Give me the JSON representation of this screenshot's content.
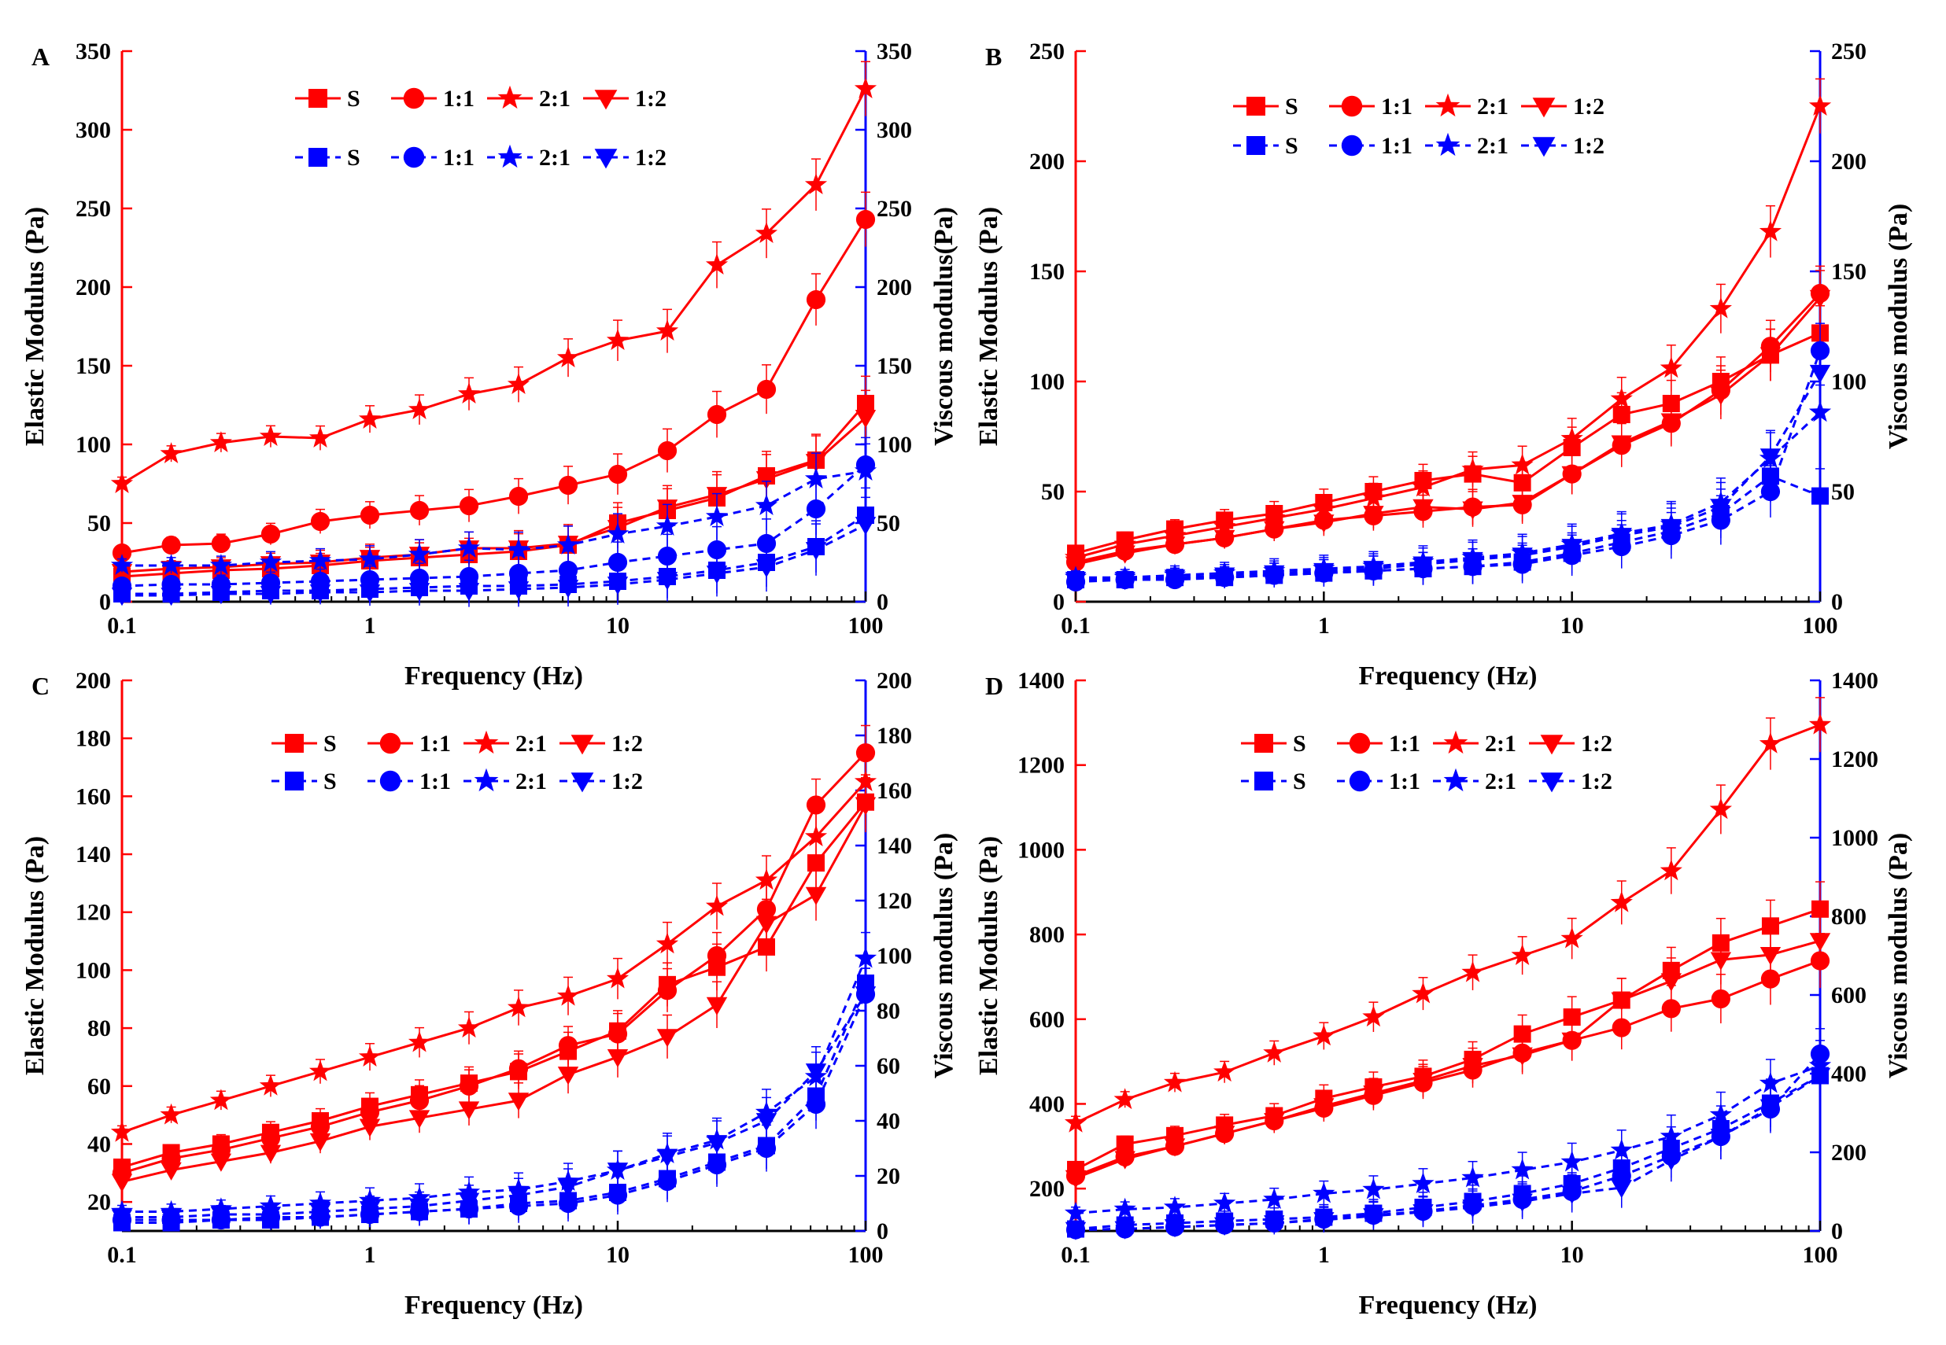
{
  "colors": {
    "elastic": "#ff0000",
    "viscous": "#0000ff",
    "axis": "#000000"
  },
  "chart_data": [
    {
      "type": "line",
      "panel_label": "A",
      "xlabel": "Frequency (Hz)",
      "ylabel": "Elastic Modulus (Pa)",
      "y2label": "Viscous modulus(Pa)",
      "xscale": "log",
      "xlim": [
        0.1,
        100
      ],
      "ylim": [
        0,
        350
      ],
      "y2lim": [
        0,
        350
      ],
      "xticks": [
        "0.1",
        "1",
        "10",
        "100"
      ],
      "yticks": [
        "0",
        "50",
        "100",
        "150",
        "200",
        "250",
        "300",
        "350"
      ],
      "y2ticks": [
        "0",
        "50",
        "100",
        "150",
        "200",
        "250",
        "300",
        "350"
      ],
      "x": [
        0.1,
        0.158,
        0.251,
        0.398,
        0.631,
        1,
        1.585,
        2.512,
        3.981,
        6.31,
        10,
        15.85,
        25.12,
        39.81,
        63.1,
        100
      ],
      "legend_rows": "separate",
      "series": [
        {
          "name": "S",
          "group": "elastic",
          "marker": "square",
          "values": [
            16,
            18,
            20,
            21,
            23,
            26,
            28,
            30,
            32,
            36,
            50,
            58,
            66,
            80,
            90,
            126
          ]
        },
        {
          "name": "1:1",
          "group": "elastic",
          "marker": "circle",
          "values": [
            31,
            36,
            37,
            43,
            51,
            55,
            58,
            61,
            67,
            74,
            81,
            96,
            119,
            135,
            192,
            243
          ]
        },
        {
          "name": "2:1",
          "group": "elastic",
          "marker": "star",
          "values": [
            75,
            94,
            101,
            105,
            104,
            116,
            122,
            132,
            138,
            155,
            166,
            172,
            214,
            234,
            265,
            326
          ]
        },
        {
          "name": "1:2",
          "group": "elastic",
          "marker": "triangle",
          "values": [
            19,
            21,
            22,
            24,
            25,
            28,
            30,
            34,
            34,
            37,
            47,
            60,
            68,
            78,
            89,
            117
          ]
        },
        {
          "name": "S",
          "group": "viscous",
          "marker": "square",
          "values": [
            5,
            5,
            6,
            7,
            7,
            8,
            9,
            10,
            10,
            11,
            13,
            16,
            20,
            25,
            35,
            55
          ]
        },
        {
          "name": "1:1",
          "group": "viscous",
          "marker": "circle",
          "values": [
            10,
            11,
            11,
            12,
            13,
            14,
            15,
            16,
            18,
            20,
            25,
            29,
            33,
            37,
            59,
            87
          ]
        },
        {
          "name": "2:1",
          "group": "viscous",
          "marker": "star",
          "values": [
            23,
            23,
            23,
            25,
            26,
            27,
            30,
            34,
            33,
            36,
            43,
            48,
            54,
            61,
            78,
            83
          ]
        },
        {
          "name": "1:2",
          "group": "viscous",
          "marker": "triangle",
          "values": [
            4,
            4,
            5,
            5,
            6,
            6,
            7,
            7,
            8,
            9,
            11,
            14,
            18,
            22,
            33,
            49
          ]
        }
      ]
    },
    {
      "type": "line",
      "panel_label": "B",
      "xlabel": "Frequency (Hz)",
      "ylabel": "Elastic Modulus (Pa)",
      "y2label": "Viscous modulus (Pa)",
      "xscale": "log",
      "xlim": [
        0.1,
        100
      ],
      "ylim": [
        0,
        250
      ],
      "y2lim": [
        0,
        250
      ],
      "xticks": [
        "0.1",
        "1",
        "10",
        "100"
      ],
      "yticks": [
        "0",
        "50",
        "100",
        "150",
        "200",
        "250"
      ],
      "y2ticks": [
        "0",
        "50",
        "100",
        "150",
        "200",
        "250"
      ],
      "x": [
        0.1,
        0.158,
        0.251,
        0.398,
        0.631,
        1,
        1.585,
        2.512,
        3.981,
        6.31,
        10,
        15.85,
        25.12,
        39.81,
        63.1,
        100
      ],
      "legend_rows": "stacked",
      "series": [
        {
          "name": "S",
          "group": "elastic",
          "marker": "square",
          "values": [
            22,
            28,
            33,
            37,
            40,
            45,
            50,
            55,
            58,
            54,
            70,
            85,
            90,
            100,
            112,
            122
          ]
        },
        {
          "name": "1:1",
          "group": "elastic",
          "marker": "circle",
          "values": [
            18,
            23,
            26,
            29,
            33,
            37,
            39,
            41,
            43,
            44,
            58,
            71,
            81,
            96,
            116,
            140
          ]
        },
        {
          "name": "2:1",
          "group": "elastic",
          "marker": "star",
          "values": [
            20,
            26,
            30,
            34,
            38,
            42,
            47,
            52,
            60,
            62,
            74,
            92,
            106,
            133,
            168,
            225
          ]
        },
        {
          "name": "1:2",
          "group": "elastic",
          "marker": "triangle",
          "values": [
            17,
            22,
            26,
            29,
            33,
            36,
            40,
            43,
            42,
            45,
            58,
            72,
            82,
            94,
            112,
            138
          ]
        },
        {
          "name": "S",
          "group": "viscous",
          "marker": "square",
          "values": [
            10,
            10,
            11,
            11,
            12,
            13,
            14,
            15,
            16,
            18,
            22,
            27,
            32,
            40,
            57,
            48
          ]
        },
        {
          "name": "1:1",
          "group": "viscous",
          "marker": "circle",
          "values": [
            9,
            10,
            10,
            11,
            12,
            13,
            14,
            15,
            16,
            17,
            21,
            25,
            30,
            37,
            50,
            114
          ]
        },
        {
          "name": "2:1",
          "group": "viscous",
          "marker": "star",
          "values": [
            11,
            11,
            12,
            13,
            14,
            15,
            16,
            18,
            20,
            22,
            26,
            31,
            35,
            45,
            65,
            86
          ]
        },
        {
          "name": "1:2",
          "group": "viscous",
          "marker": "triangle",
          "values": [
            10,
            10,
            11,
            12,
            13,
            14,
            15,
            17,
            19,
            21,
            25,
            30,
            34,
            43,
            66,
            104
          ]
        }
      ]
    },
    {
      "type": "line",
      "panel_label": "C",
      "xlabel": "Frequency (Hz)",
      "ylabel": "Elastic Modulus (Pa)",
      "y2label": "Viscous modulus (Pa)",
      "xscale": "log",
      "xlim": [
        0.1,
        100
      ],
      "ylim": [
        10,
        200
      ],
      "y2lim": [
        0,
        200
      ],
      "xticks": [
        "0.1",
        "1",
        "10",
        "100"
      ],
      "yticks": [
        "20",
        "40",
        "60",
        "80",
        "100",
        "120",
        "140",
        "160",
        "180",
        "200"
      ],
      "y2ticks": [
        "0",
        "20",
        "40",
        "60",
        "80",
        "100",
        "120",
        "140",
        "160",
        "180",
        "200"
      ],
      "x": [
        0.1,
        0.158,
        0.251,
        0.398,
        0.631,
        1,
        1.585,
        2.512,
        3.981,
        6.31,
        10,
        15.85,
        25.12,
        39.81,
        63.1,
        100
      ],
      "legend_rows": "stacked",
      "series": [
        {
          "name": "S",
          "group": "elastic",
          "marker": "square",
          "values": [
            32,
            37,
            40,
            44,
            48,
            53,
            57,
            61,
            65,
            72,
            79,
            95,
            101,
            108,
            137,
            158
          ]
        },
        {
          "name": "1:1",
          "group": "elastic",
          "marker": "circle",
          "values": [
            30,
            35,
            38,
            42,
            46,
            51,
            55,
            60,
            66,
            74,
            78,
            93,
            105,
            121,
            157,
            175
          ]
        },
        {
          "name": "2:1",
          "group": "elastic",
          "marker": "star",
          "values": [
            44,
            50,
            55,
            60,
            65,
            70,
            75,
            80,
            87,
            91,
            97,
            109,
            122,
            131,
            146,
            165
          ]
        },
        {
          "name": "1:2",
          "group": "elastic",
          "marker": "triangle",
          "values": [
            27,
            31,
            34,
            37,
            41,
            46,
            49,
            52,
            55,
            64,
            70,
            77,
            88,
            116,
            126,
            157
          ]
        },
        {
          "name": "S",
          "group": "viscous",
          "marker": "square",
          "values": [
            3,
            3,
            4,
            4,
            5,
            6,
            7,
            8,
            10,
            11,
            14,
            19,
            25,
            31,
            49,
            90
          ]
        },
        {
          "name": "1:1",
          "group": "viscous",
          "marker": "circle",
          "values": [
            4,
            4,
            4,
            5,
            5,
            6,
            7,
            8,
            9,
            10,
            13,
            18,
            24,
            30,
            46,
            86
          ]
        },
        {
          "name": "2:1",
          "group": "viscous",
          "marker": "star",
          "values": [
            7,
            7,
            8,
            9,
            10,
            11,
            12,
            14,
            15,
            18,
            22,
            28,
            33,
            43,
            56,
            99
          ]
        },
        {
          "name": "1:2",
          "group": "viscous",
          "marker": "triangle",
          "values": [
            5,
            5,
            6,
            6,
            7,
            8,
            9,
            11,
            13,
            16,
            22,
            27,
            32,
            40,
            58,
            86
          ]
        }
      ]
    },
    {
      "type": "line",
      "panel_label": "D",
      "xlabel": "Frequency (Hz)",
      "ylabel": "Elastic Modulus (Pa)",
      "y2label": "Viscous modulus (Pa)",
      "xscale": "log",
      "xlim": [
        0.1,
        100
      ],
      "ylim": [
        100,
        1400
      ],
      "y2lim": [
        0,
        1400
      ],
      "xticks": [
        "0.1",
        "1",
        "10",
        "100"
      ],
      "yticks": [
        "200",
        "400",
        "600",
        "800",
        "1000",
        "1200",
        "1400"
      ],
      "y2ticks": [
        "0",
        "200",
        "400",
        "600",
        "800",
        "1000",
        "1200",
        "1400"
      ],
      "x": [
        0.1,
        0.158,
        0.251,
        0.398,
        0.631,
        1,
        1.585,
        2.512,
        3.981,
        6.31,
        10,
        15.85,
        25.12,
        39.81,
        63.1,
        100
      ],
      "legend_rows": "stacked",
      "series": [
        {
          "name": "S",
          "group": "elastic",
          "marker": "square",
          "values": [
            245,
            305,
            325,
            350,
            372,
            413,
            440,
            465,
            505,
            565,
            605,
            645,
            715,
            780,
            820,
            860
          ]
        },
        {
          "name": "1:1",
          "group": "elastic",
          "marker": "circle",
          "values": [
            230,
            275,
            300,
            330,
            360,
            390,
            420,
            450,
            480,
            520,
            550,
            580,
            625,
            648,
            695,
            738
          ]
        },
        {
          "name": "2:1",
          "group": "elastic",
          "marker": "star",
          "values": [
            355,
            410,
            450,
            475,
            520,
            560,
            605,
            660,
            710,
            750,
            790,
            875,
            950,
            1095,
            1250,
            1295
          ]
        },
        {
          "name": "1:2",
          "group": "elastic",
          "marker": "triangle",
          "values": [
            225,
            270,
            300,
            330,
            360,
            395,
            425,
            455,
            490,
            515,
            550,
            645,
            690,
            740,
            752,
            785
          ]
        },
        {
          "name": "S",
          "group": "viscous",
          "marker": "square",
          "values": [
            5,
            15,
            20,
            25,
            30,
            35,
            45,
            60,
            75,
            95,
            120,
            160,
            210,
            260,
            325,
            395
          ]
        },
        {
          "name": "1:1",
          "group": "viscous",
          "marker": "circle",
          "values": [
            3,
            5,
            10,
            15,
            20,
            30,
            40,
            50,
            65,
            80,
            100,
            140,
            190,
            240,
            310,
            450
          ]
        },
        {
          "name": "2:1",
          "group": "viscous",
          "marker": "star",
          "values": [
            45,
            55,
            60,
            70,
            80,
            95,
            105,
            120,
            135,
            155,
            175,
            205,
            240,
            295,
            375,
            420
          ]
        },
        {
          "name": "1:2",
          "group": "viscous",
          "marker": "triangle",
          "values": [
            3,
            5,
            10,
            15,
            20,
            28,
            38,
            48,
            60,
            75,
            95,
            110,
            180,
            240,
            315,
            395
          ]
        }
      ]
    }
  ]
}
